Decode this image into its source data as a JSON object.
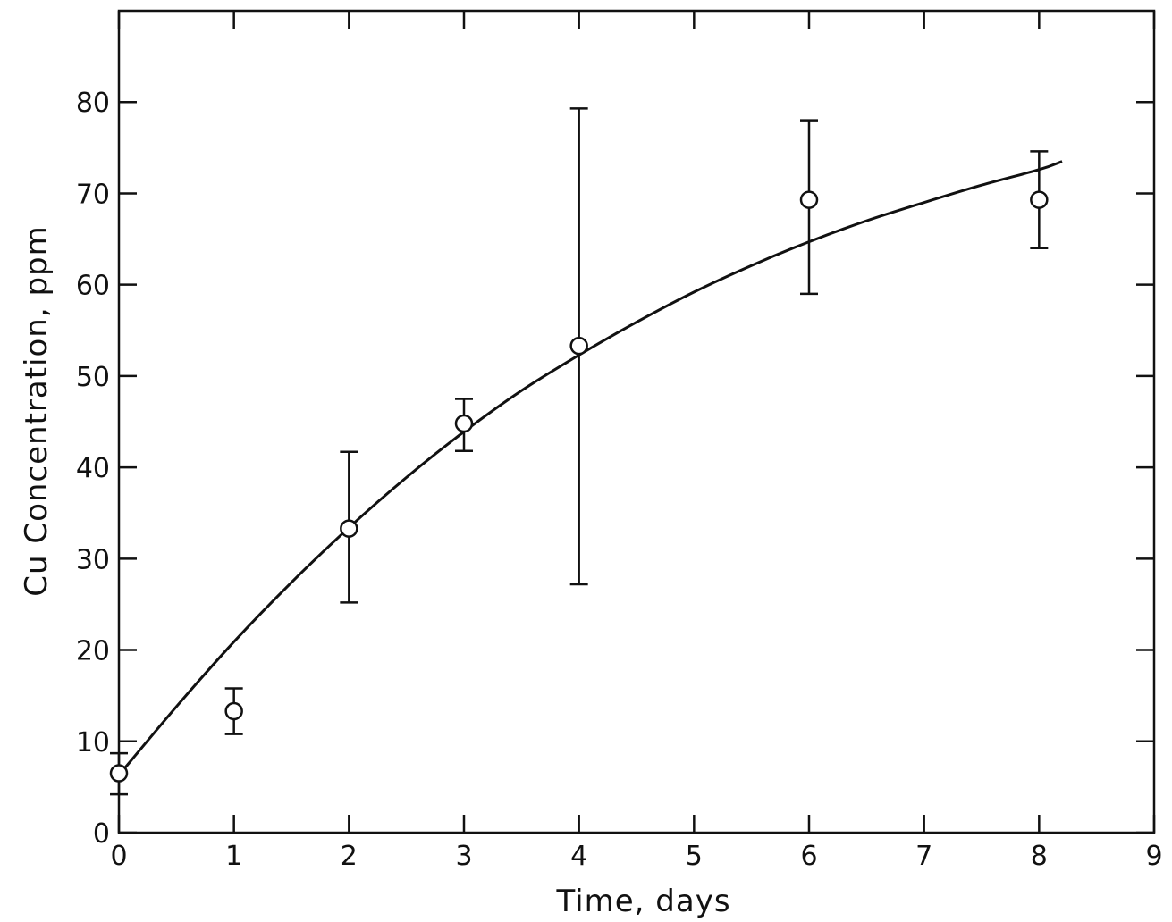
{
  "chart_data": {
    "type": "scatter",
    "title": "",
    "xlabel": "Time, days",
    "ylabel": "Cu Concentration, ppm",
    "xlim": [
      0,
      9
    ],
    "ylim": [
      0,
      90
    ],
    "x_ticks": [
      0,
      1,
      2,
      3,
      4,
      5,
      6,
      7,
      8,
      9
    ],
    "x_tick_labels": [
      "0",
      "1",
      "2",
      "3",
      "4",
      "5",
      "6",
      "7",
      "8",
      "9"
    ],
    "y_ticks": [
      0,
      10,
      20,
      30,
      40,
      50,
      60,
      70,
      80
    ],
    "y_tick_labels": [
      "0",
      "10",
      "20",
      "30",
      "40",
      "50",
      "60",
      "70",
      "80"
    ],
    "grid": false,
    "points": [
      {
        "x": 0,
        "y": 6.5,
        "err_low": 4.2,
        "err_high": 8.7
      },
      {
        "x": 1,
        "y": 13.3,
        "err_low": 10.8,
        "err_high": 15.8
      },
      {
        "x": 2,
        "y": 33.3,
        "err_low": 25.2,
        "err_high": 41.7
      },
      {
        "x": 3,
        "y": 44.8,
        "err_low": 41.8,
        "err_high": 47.5
      },
      {
        "x": 4,
        "y": 53.3,
        "err_low": 27.2,
        "err_high": 79.3
      },
      {
        "x": 6,
        "y": 69.3,
        "err_low": 59.0,
        "err_high": 78.0
      },
      {
        "x": 8,
        "y": 69.3,
        "err_low": 64.0,
        "err_high": 74.6
      }
    ],
    "fit_curve": {
      "x": [
        0,
        0.5,
        1,
        1.5,
        2,
        2.5,
        3,
        3.5,
        4,
        4.5,
        5,
        5.5,
        6,
        6.5,
        7,
        7.5,
        8,
        8.2
      ],
      "y": [
        6.3,
        13.8,
        20.9,
        27.4,
        33.4,
        38.9,
        43.9,
        48.4,
        52.3,
        55.9,
        59.2,
        62.1,
        64.7,
        67.0,
        69.0,
        70.9,
        72.6,
        73.5
      ]
    }
  }
}
